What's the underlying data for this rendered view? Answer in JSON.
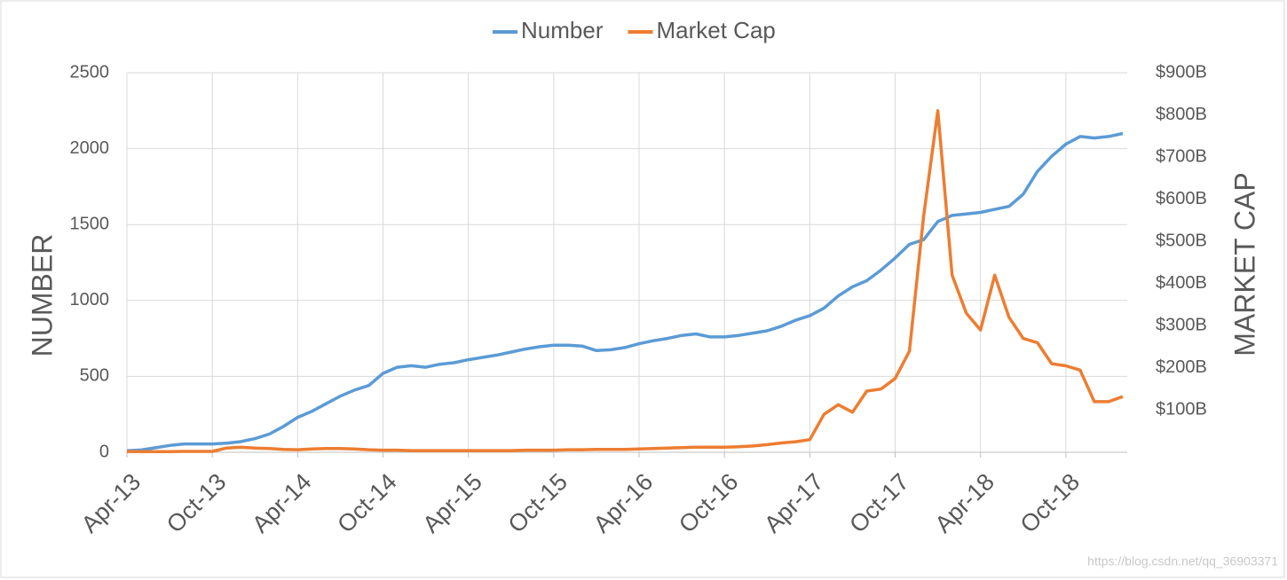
{
  "chart_data": {
    "type": "line",
    "legend": "top",
    "grid": true,
    "y_label": "NUMBER",
    "y2_label": "MARKET CAP",
    "watermark": "https://blog.csdn.net/qq_36903371",
    "x": [
      "2013-04",
      "2013-05",
      "2013-06",
      "2013-07",
      "2013-08",
      "2013-09",
      "2013-10",
      "2013-11",
      "2013-12",
      "2014-01",
      "2014-02",
      "2014-03",
      "2014-04",
      "2014-05",
      "2014-06",
      "2014-07",
      "2014-08",
      "2014-09",
      "2014-10",
      "2014-11",
      "2014-12",
      "2015-01",
      "2015-02",
      "2015-03",
      "2015-04",
      "2015-05",
      "2015-06",
      "2015-07",
      "2015-08",
      "2015-09",
      "2015-10",
      "2015-11",
      "2015-12",
      "2016-01",
      "2016-02",
      "2016-03",
      "2016-04",
      "2016-05",
      "2016-06",
      "2016-07",
      "2016-08",
      "2016-09",
      "2016-10",
      "2016-11",
      "2016-12",
      "2017-01",
      "2017-02",
      "2017-03",
      "2017-04",
      "2017-05",
      "2017-06",
      "2017-07",
      "2017-08",
      "2017-09",
      "2017-10",
      "2017-11",
      "2017-12",
      "2018-01",
      "2018-02",
      "2018-03",
      "2018-04",
      "2018-05",
      "2018-06",
      "2018-07",
      "2018-08",
      "2018-09",
      "2018-10",
      "2018-11",
      "2018-12",
      "2019-01",
      "2019-02"
    ],
    "xlim": [
      "2013-04",
      "2019-02"
    ],
    "xticks": [
      {
        "value": "2013-04",
        "label": "Apr-13"
      },
      {
        "value": "2013-10",
        "label": "Oct-13"
      },
      {
        "value": "2014-04",
        "label": "Apr-14"
      },
      {
        "value": "2014-10",
        "label": "Oct-14"
      },
      {
        "value": "2015-04",
        "label": "Apr-15"
      },
      {
        "value": "2015-10",
        "label": "Oct-15"
      },
      {
        "value": "2016-04",
        "label": "Apr-16"
      },
      {
        "value": "2016-10",
        "label": "Oct-16"
      },
      {
        "value": "2017-04",
        "label": "Apr-17"
      },
      {
        "value": "2017-10",
        "label": "Oct-17"
      },
      {
        "value": "2018-04",
        "label": "Apr-18"
      },
      {
        "value": "2018-10",
        "label": "Oct-18"
      }
    ],
    "ylim": [
      0,
      2500
    ],
    "yticks": [
      0,
      500,
      1000,
      1500,
      2000,
      2500
    ],
    "y2lim": [
      0,
      900
    ],
    "y2ticks": [
      {
        "value": 100,
        "label": "$100B"
      },
      {
        "value": 200,
        "label": "$200B"
      },
      {
        "value": 300,
        "label": "$300B"
      },
      {
        "value": 400,
        "label": "$400B"
      },
      {
        "value": 500,
        "label": "$500B"
      },
      {
        "value": 600,
        "label": "$600B"
      },
      {
        "value": 700,
        "label": "$700B"
      },
      {
        "value": 800,
        "label": "$800B"
      },
      {
        "value": 900,
        "label": "$900B"
      }
    ],
    "series": [
      {
        "name": "Number",
        "color": "#5b9bd5",
        "values": [
          10,
          15,
          30,
          45,
          55,
          55,
          55,
          60,
          70,
          90,
          120,
          170,
          230,
          270,
          320,
          370,
          410,
          440,
          520,
          560,
          570,
          560,
          580,
          590,
          610,
          625,
          640,
          660,
          680,
          695,
          705,
          705,
          700,
          670,
          675,
          690,
          715,
          735,
          750,
          770,
          780,
          760,
          760,
          770,
          785,
          800,
          830,
          870,
          900,
          950,
          1030,
          1090,
          1130,
          1200,
          1280,
          1370,
          1400,
          1520,
          1560,
          1570,
          1580,
          1600,
          1620,
          1700,
          1850,
          1950,
          2030,
          2080,
          2070,
          2080,
          2100
        ]
      },
      {
        "name": "Market Cap",
        "color": "#ed7d31",
        "axis": "y2",
        "values": [
          1.5,
          1.5,
          1.5,
          1.5,
          2,
          2,
          2,
          10,
          12,
          10,
          9,
          7,
          6,
          8,
          9,
          9,
          8,
          6,
          5,
          5,
          4,
          4,
          4,
          4,
          4,
          4,
          4,
          4,
          5,
          5,
          5,
          6,
          6,
          7,
          7,
          7,
          8,
          9,
          10,
          11,
          12,
          12,
          12,
          13,
          15,
          18,
          22,
          25,
          30,
          90,
          113,
          95,
          145,
          150,
          175,
          240,
          560,
          810,
          420,
          330,
          290,
          420,
          320,
          270,
          260,
          210,
          205,
          195,
          120,
          120,
          132
        ]
      }
    ]
  }
}
